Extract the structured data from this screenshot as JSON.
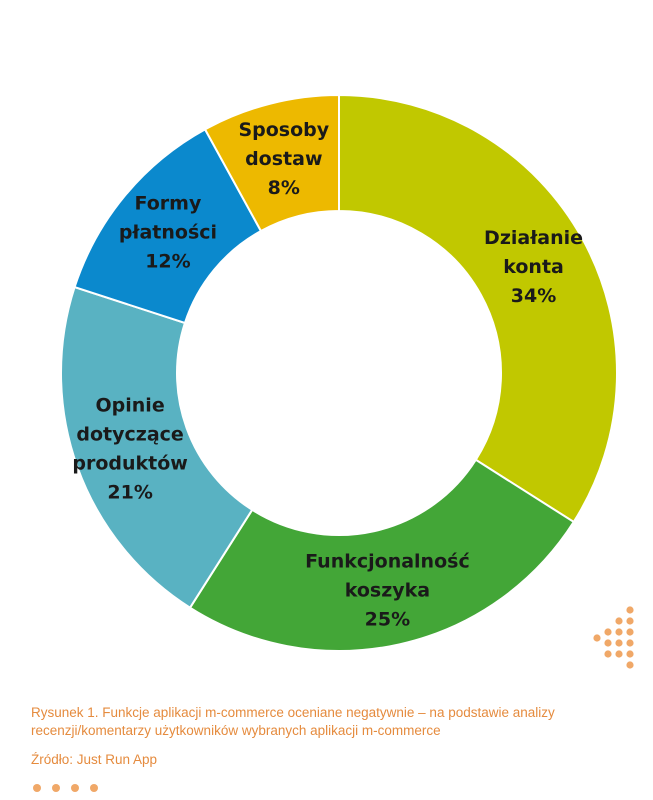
{
  "chart_data": {
    "type": "pie",
    "donut": true,
    "slices": [
      {
        "label": [
          "Działanie",
          "konta"
        ],
        "value": 34,
        "value_label": "34%",
        "color": "#c1c800"
      },
      {
        "label": [
          "Funkcjonalność",
          "koszyka"
        ],
        "value": 25,
        "value_label": "25%",
        "color": "#43a637"
      },
      {
        "label": [
          "Opinie",
          "dotyczące",
          "produktów"
        ],
        "value": 21,
        "value_label": "21%",
        "color": "#59b2c2"
      },
      {
        "label": [
          "Formy",
          "płatności"
        ],
        "value": 12,
        "value_label": "12%",
        "color": "#0b89cd"
      },
      {
        "label": [
          "Sposoby",
          "dostaw"
        ],
        "value": 8,
        "value_label": "8%",
        "color": "#edb900"
      }
    ]
  },
  "figure": {
    "caption": "Rysunek 1. Funkcje aplikacji m-commerce oceniane negatywnie – na podstawie analizy recenzji/komentarzy użytkowników wybranych aplikacji m-commerce",
    "source": "Źródło: Just Run App"
  },
  "colors": {
    "caption_text": "#e58b3e",
    "decoration": "#f0a868"
  }
}
